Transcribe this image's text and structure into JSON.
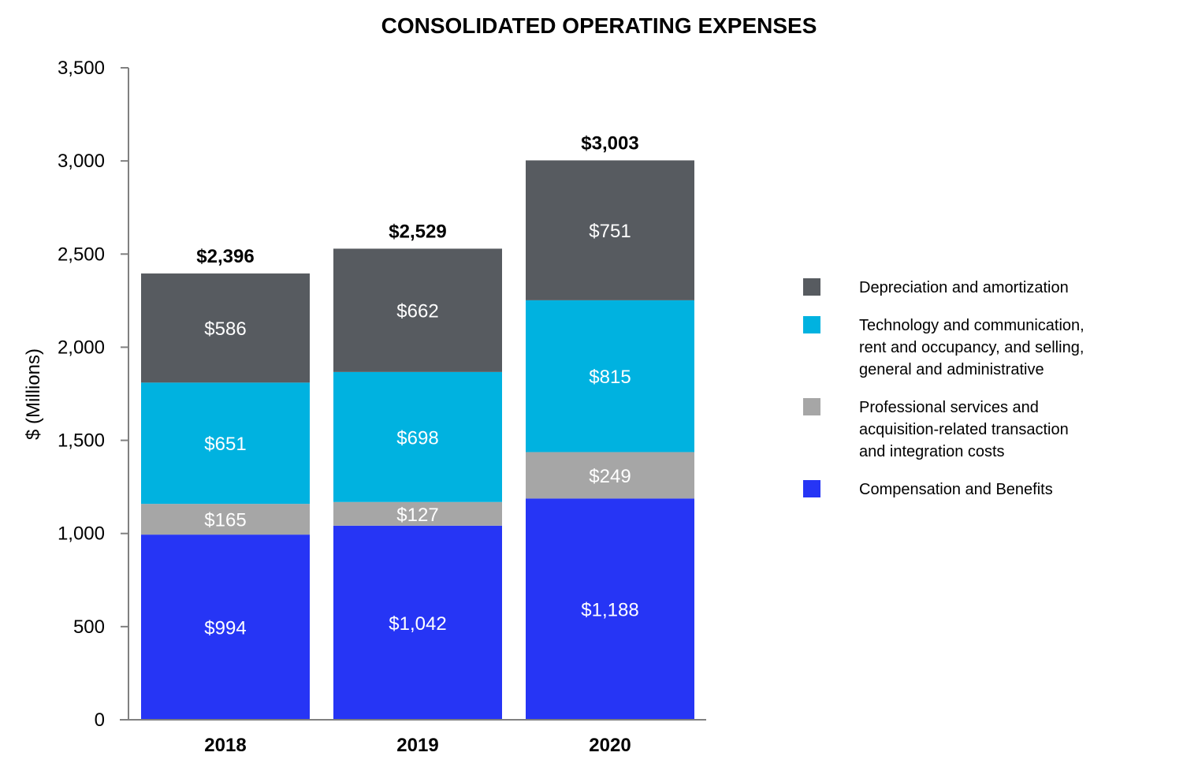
{
  "chart_data": {
    "type": "bar",
    "stacked": true,
    "title": "CONSOLIDATED OPERATING EXPENSES",
    "xlabel": "",
    "ylabel": "$ (Millions)",
    "ylim": [
      0,
      3500
    ],
    "yticks": [
      0,
      500,
      1000,
      1500,
      2000,
      2500,
      3000,
      3500
    ],
    "ytick_labels": [
      "0",
      "500",
      "1,000",
      "1,500",
      "2,000",
      "2,500",
      "3,000",
      "3,500"
    ],
    "categories": [
      "2018",
      "2019",
      "2020"
    ],
    "series": [
      {
        "name": "Compensation and Benefits",
        "color": "#2635f5",
        "values": [
          994,
          1042,
          1188
        ],
        "labels": [
          "$994",
          "$1,042",
          "$1,188"
        ]
      },
      {
        "name": "Professional services and acquisition-related transaction and integration costs",
        "color": "#a6a6a6",
        "values": [
          165,
          127,
          249
        ],
        "labels": [
          "$165",
          "$127",
          "$249"
        ]
      },
      {
        "name": "Technology and communication, rent and occupancy, and selling, general and administrative",
        "color": "#00b2e0",
        "values": [
          651,
          698,
          815
        ],
        "labels": [
          "$651",
          "$698",
          "$815"
        ]
      },
      {
        "name": "Depreciation and amortization",
        "color": "#575b60",
        "values": [
          586,
          662,
          751
        ],
        "labels": [
          "$586",
          "$662",
          "$751"
        ]
      }
    ],
    "totals": [
      2396,
      2529,
      3003
    ],
    "total_labels": [
      "$2,396",
      "$2,529",
      "$3,003"
    ],
    "legend": {
      "position": "right",
      "entries": [
        {
          "series": "Depreciation and amortization",
          "lines": [
            "Depreciation and amortization"
          ]
        },
        {
          "series": "Technology and communication, rent and occupancy, and selling, general and administrative",
          "lines": [
            "Technology and communication,",
            "rent and occupancy, and selling,",
            "general and administrative"
          ]
        },
        {
          "series": "Professional services and acquisition-related transaction and integration costs",
          "lines": [
            "Professional services and",
            "acquisition-related transaction",
            "and integration costs"
          ]
        },
        {
          "series": "Compensation and Benefits",
          "lines": [
            "Compensation and Benefits"
          ]
        }
      ]
    }
  }
}
